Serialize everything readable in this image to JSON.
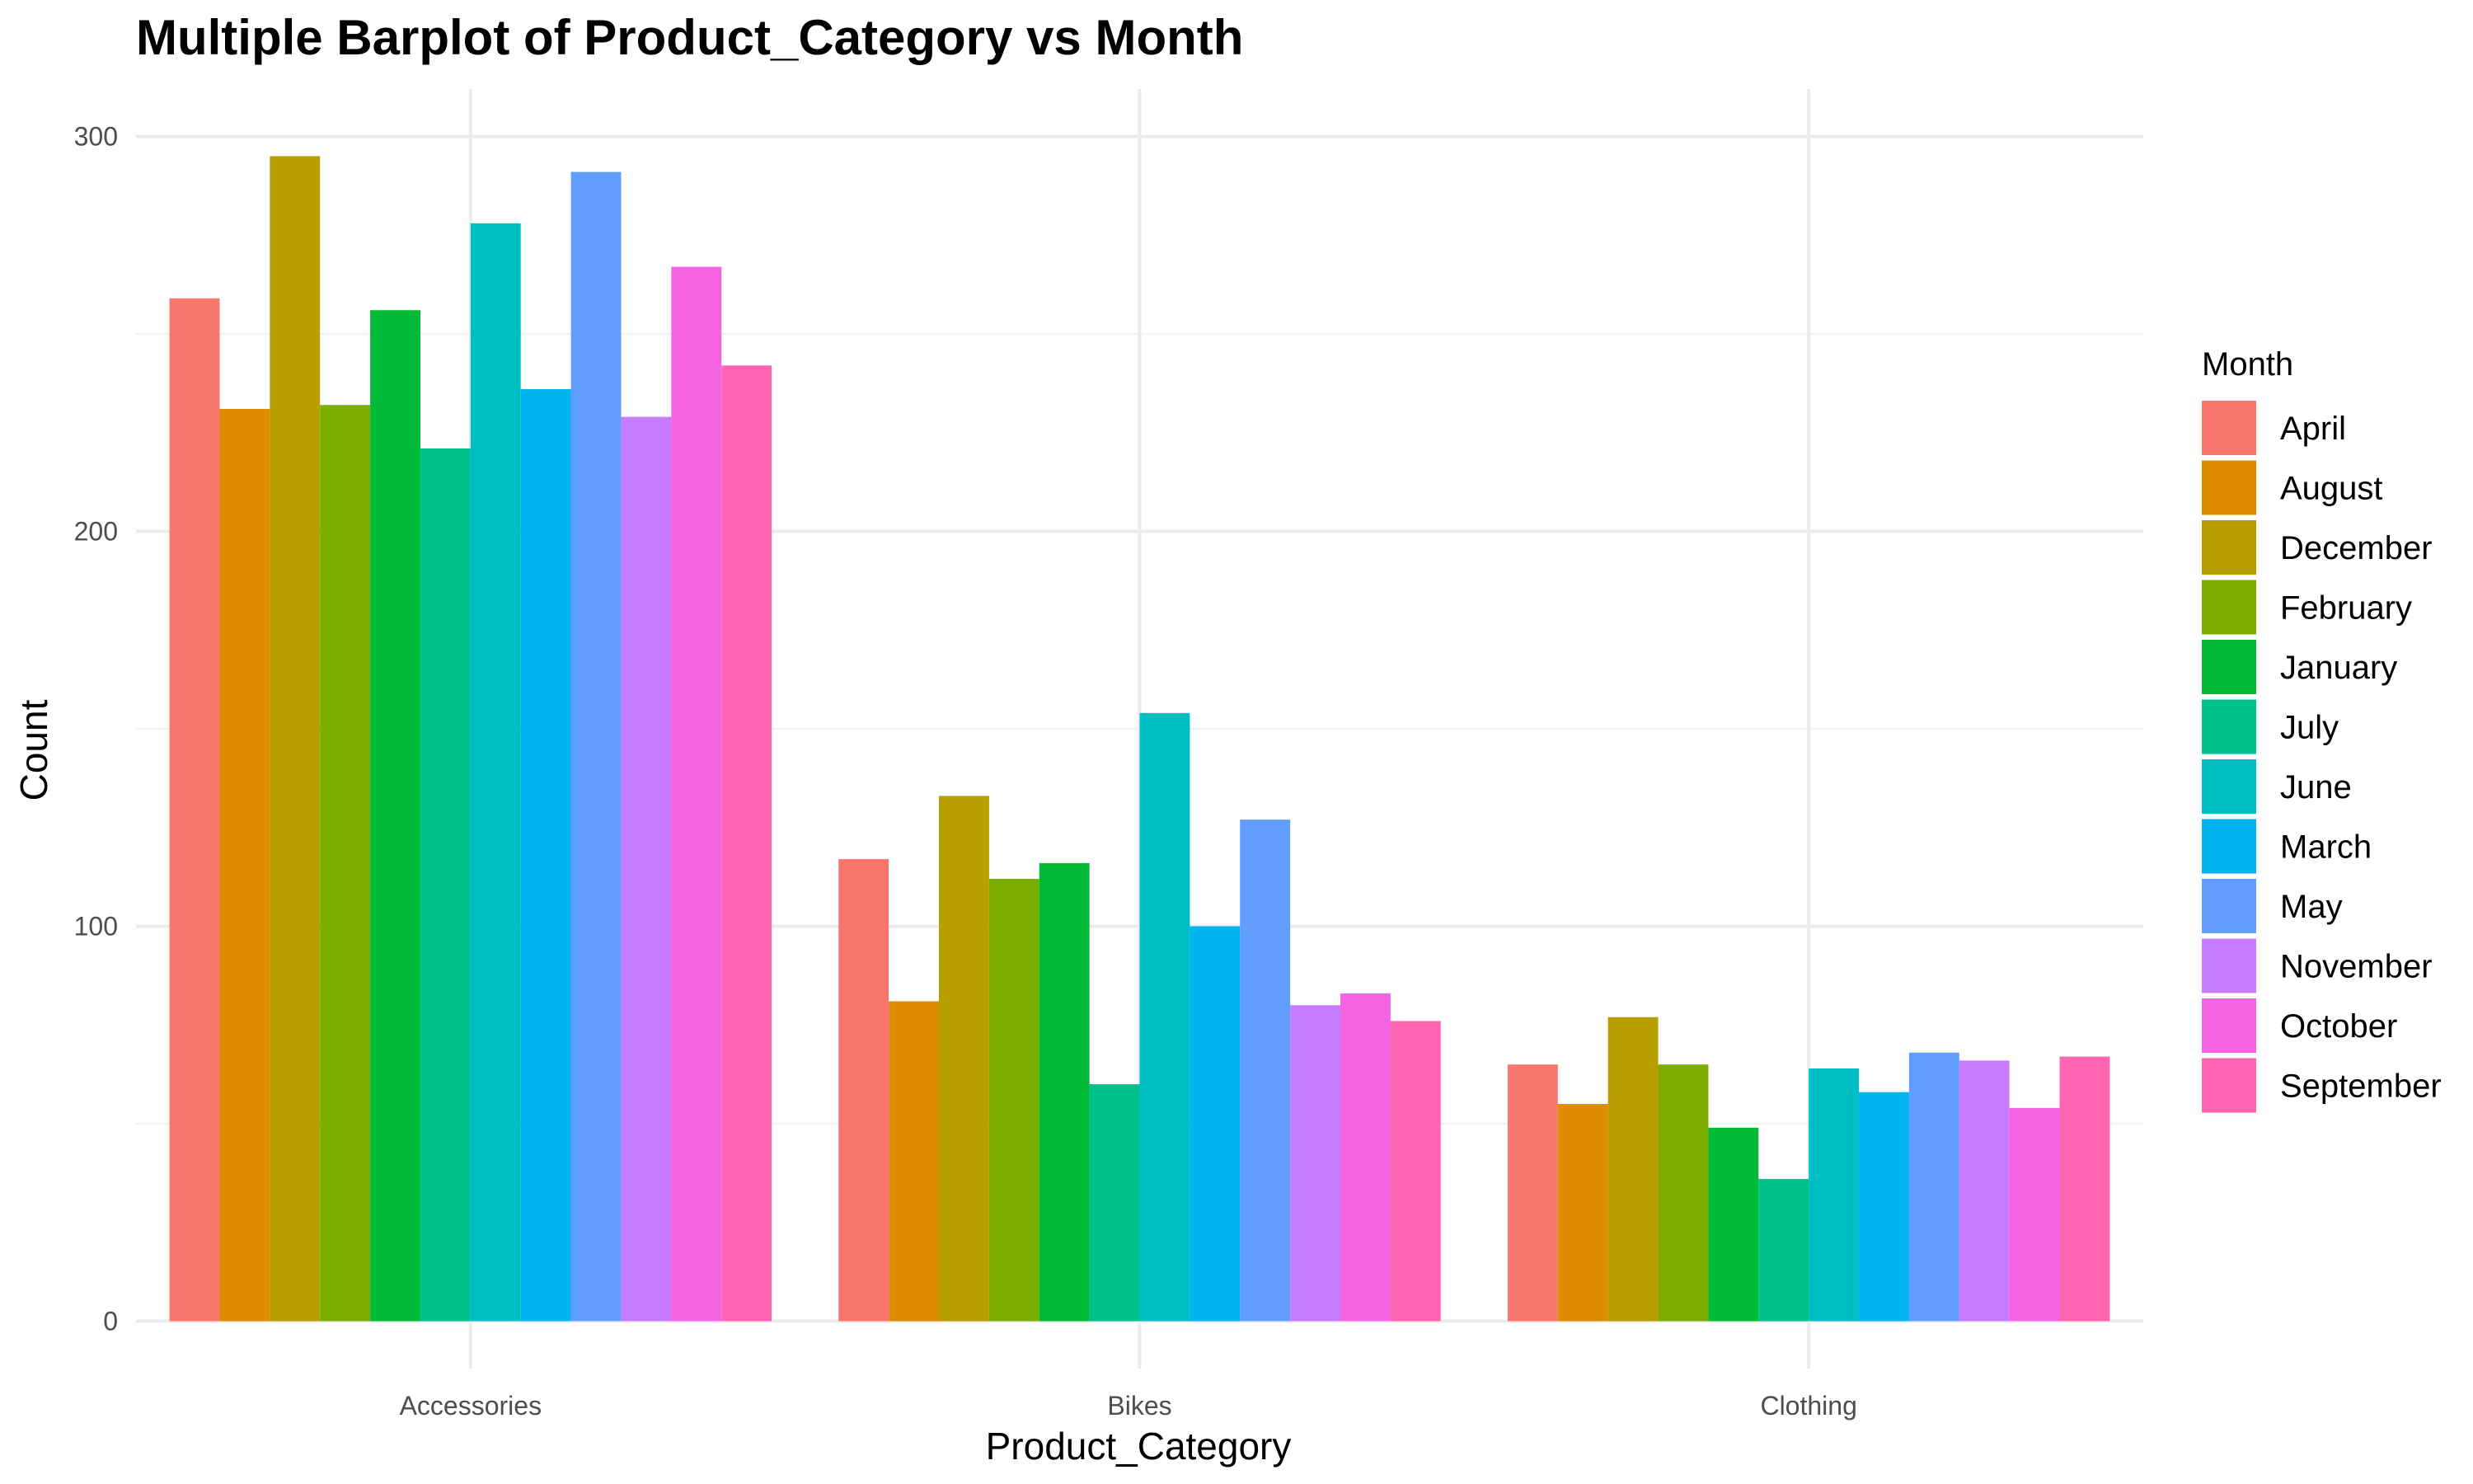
{
  "chart_data": {
    "type": "bar",
    "title": "Multiple Barplot of Product_Category vs Month",
    "xlabel": "Product_Category",
    "ylabel": "Count",
    "ylim": [
      -12,
      312
    ],
    "yticks": [
      0,
      100,
      200,
      300
    ],
    "grid": true,
    "legend_title": "Month",
    "legend_position": "right",
    "categories": [
      "Accessories",
      "Bikes",
      "Clothing"
    ],
    "series": [
      {
        "name": "April",
        "color": "#F8766D",
        "values": [
          259,
          117,
          65
        ]
      },
      {
        "name": "August",
        "color": "#DE8C00",
        "values": [
          231,
          81,
          55
        ]
      },
      {
        "name": "December",
        "color": "#B79F00",
        "values": [
          295,
          133,
          77
        ]
      },
      {
        "name": "February",
        "color": "#7CAE00",
        "values": [
          232,
          112,
          65
        ]
      },
      {
        "name": "January",
        "color": "#00BA38",
        "values": [
          256,
          116,
          49
        ]
      },
      {
        "name": "July",
        "color": "#00C08B",
        "values": [
          221,
          60,
          36
        ]
      },
      {
        "name": "June",
        "color": "#00BFC4",
        "values": [
          278,
          154,
          64
        ]
      },
      {
        "name": "March",
        "color": "#00B4F0",
        "values": [
          236,
          100,
          58
        ]
      },
      {
        "name": "May",
        "color": "#619CFF",
        "values": [
          291,
          127,
          68
        ]
      },
      {
        "name": "November",
        "color": "#C77CFF",
        "values": [
          229,
          80,
          66
        ]
      },
      {
        "name": "October",
        "color": "#F564E3",
        "values": [
          267,
          83,
          54
        ]
      },
      {
        "name": "September",
        "color": "#FF64B0",
        "values": [
          242,
          76,
          67
        ]
      }
    ]
  }
}
